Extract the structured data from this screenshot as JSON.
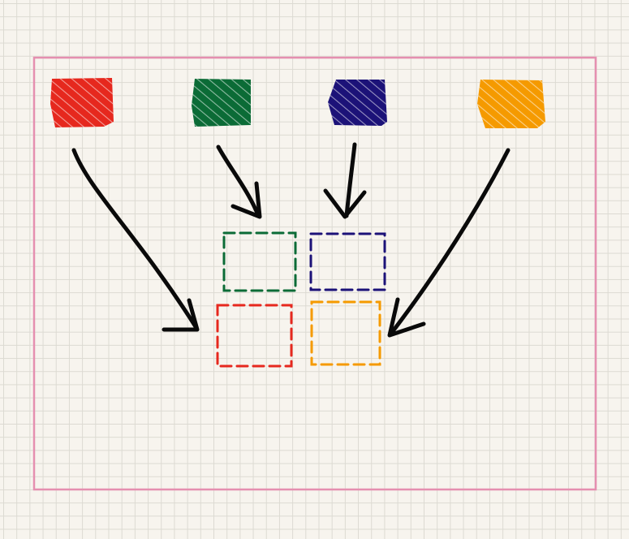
{
  "canvas": {
    "background": "#f7f4ee",
    "grid_color": "#dcdad2",
    "frame_color": "#e58fb0"
  },
  "source_blocks": [
    {
      "id": "red",
      "color": "#e6281e"
    },
    {
      "id": "green",
      "color": "#0b6b36"
    },
    {
      "id": "navy",
      "color": "#1c1278"
    },
    {
      "id": "orange",
      "color": "#f59a00"
    }
  ],
  "target_slots": [
    {
      "id": "top-left",
      "color": "#0b6b36"
    },
    {
      "id": "top-right",
      "color": "#1c1278"
    },
    {
      "id": "bottom-left",
      "color": "#e6281e"
    },
    {
      "id": "bottom-right",
      "color": "#f59a00"
    }
  ],
  "arrows": [
    {
      "from": "red",
      "to": "bottom-left"
    },
    {
      "from": "green",
      "to": "top-left"
    },
    {
      "from": "navy",
      "to": "top-right"
    },
    {
      "from": "orange",
      "to": "bottom-right"
    }
  ],
  "arrow_color": "#0a0a0a"
}
